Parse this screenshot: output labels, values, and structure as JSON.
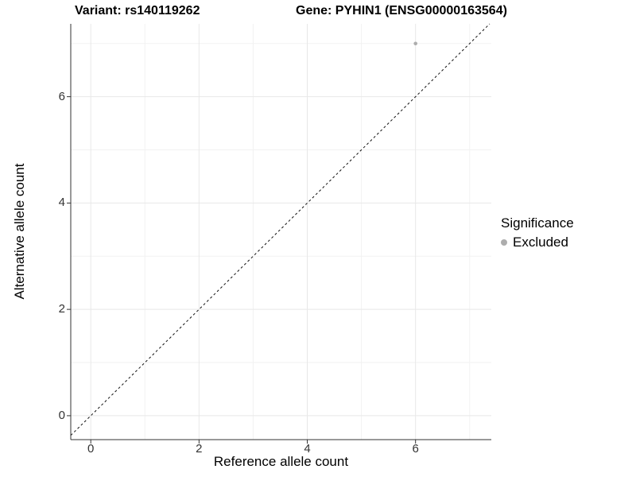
{
  "header": {
    "title_left": "Variant: rs140119262",
    "title_right": "Gene: PYHIN1 (ENSG00000163564)"
  },
  "chart_data": {
    "type": "scatter",
    "title_left": "Variant: rs140119262",
    "title_right": "Gene: PYHIN1 (ENSG00000163564)",
    "xlabel": "Reference allele count",
    "ylabel": "Alternative allele count",
    "xlim": [
      -0.37,
      7.4
    ],
    "ylim": [
      -0.45,
      7.37
    ],
    "xticks": [
      0,
      2,
      4,
      6
    ],
    "yticks": [
      0,
      2,
      4,
      6
    ],
    "x_minor_breaks": [
      1,
      3,
      5,
      7
    ],
    "y_minor_breaks": [
      1,
      3,
      5,
      7
    ],
    "grid": true,
    "legend_position": "right",
    "series": [
      {
        "name": "Excluded",
        "color": "#adadad",
        "point_radius": 2.3,
        "points": [
          {
            "x": 6,
            "y": 7
          }
        ]
      }
    ],
    "reference_line": {
      "type": "identity",
      "slope": 1,
      "intercept": 0,
      "style": "dashed",
      "color": "#111111"
    },
    "legend": {
      "title": "Significance",
      "items": [
        {
          "label": "Excluded",
          "color": "#adadad"
        }
      ]
    }
  },
  "colors": {
    "background": "#ffffff",
    "grid_major": "#e8e8e8",
    "grid_minor": "#f2f2f2",
    "axis_line": "#333333",
    "tick_mark": "#333333",
    "tick_text": "#333333"
  }
}
